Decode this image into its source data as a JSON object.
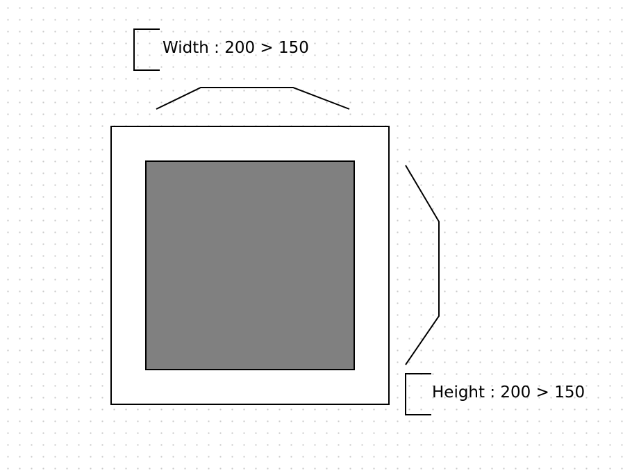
{
  "labels": {
    "width_label": "Width : 200 > 150",
    "height_label": "Height : 200 > 150"
  },
  "colors": {
    "outer_fill": "#ffffff",
    "inner_fill": "#808080",
    "stroke": "#000000",
    "grid_dot": "#c8c8c8"
  }
}
